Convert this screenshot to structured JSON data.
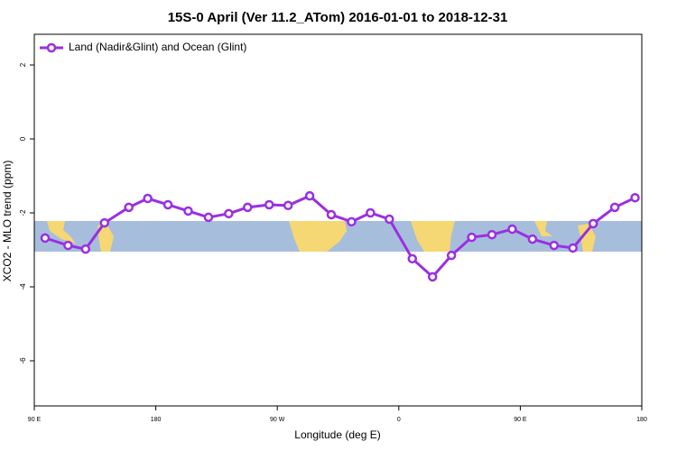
{
  "chart_data": {
    "type": "line",
    "title": "15S-0 April (Ver 11.2_ATom)   2016-01-01 to 2018-12-31",
    "x_label": "Longitude (deg E)",
    "y_label": "XCO2 - MLO trend (ppm)",
    "xlim": [
      90,
      540
    ],
    "xticks": [
      {
        "value": 90,
        "label": "90 E"
      },
      {
        "value": 180,
        "label": "180"
      },
      {
        "value": 270,
        "label": "90 W"
      },
      {
        "value": 360,
        "label": "0"
      },
      {
        "value": 450,
        "label": "90 E"
      },
      {
        "value": 540,
        "label": "180"
      }
    ],
    "ylim": [
      -7.22,
      2.83
    ],
    "yticks": [
      2,
      0,
      -2,
      -4,
      -6
    ],
    "legend": "top-left",
    "series": [
      {
        "name": "Land (Nadir&Glint) and Ocean (Glint)",
        "color": "#9a2fe0",
        "x": [
          98,
          115,
          128,
          142,
          160,
          174,
          189,
          204,
          219,
          234,
          248,
          264,
          278,
          294,
          310,
          325,
          339,
          353,
          370,
          385,
          399,
          414,
          429,
          444,
          459,
          475,
          489,
          504,
          520,
          535
        ],
        "values": [
          -2.68,
          -2.88,
          -2.98,
          -2.27,
          -1.85,
          -1.61,
          -1.78,
          -1.95,
          -2.12,
          -2.02,
          -1.85,
          -1.78,
          -1.8,
          -1.54,
          -2.05,
          -2.24,
          -2.0,
          -2.17,
          -3.24,
          -3.73,
          -3.15,
          -2.66,
          -2.59,
          -2.44,
          -2.71,
          -2.88,
          -2.95,
          -2.29,
          -1.85,
          -1.59
        ]
      }
    ]
  }
}
